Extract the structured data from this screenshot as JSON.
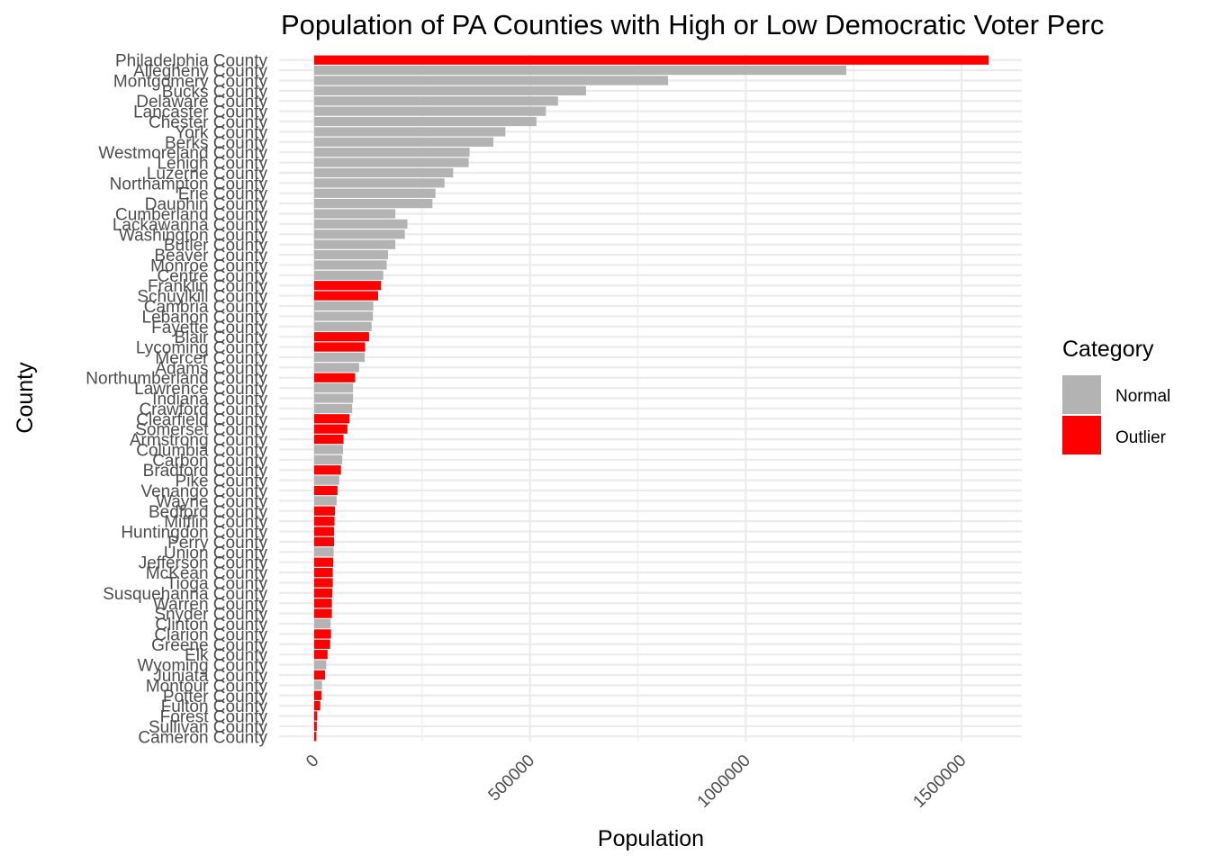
{
  "chart_data": {
    "type": "bar",
    "orientation": "horizontal",
    "title": "Population of PA Counties with High or Low Democratic Voter Perc",
    "xlabel": "Population",
    "ylabel": "County",
    "xlim": [
      0,
      1640000
    ],
    "xticks": [
      0,
      500000,
      1000000,
      1500000
    ],
    "xtick_labels": [
      "0",
      "500000",
      "1000000",
      "1500000"
    ],
    "grid": true,
    "legend": {
      "title": "Category",
      "position": "right",
      "entries": [
        {
          "label": "Normal",
          "color": "#b3b3b3"
        },
        {
          "label": "Outlier",
          "color": "#ff0000"
        }
      ]
    },
    "categories": [
      "Philadelphia County",
      "Allegheny County",
      "Montgomery County",
      "Bucks County",
      "Delaware County",
      "Lancaster County",
      "Chester County",
      "York County",
      "Berks County",
      "Westmoreland County",
      "Lehigh County",
      "Luzerne County",
      "Northampton County",
      "Erie County",
      "Dauphin County",
      "Cumberland County",
      "Lackawanna County",
      "Washington County",
      "Butler County",
      "Beaver County",
      "Monroe County",
      "Centre County",
      "Franklin County",
      "Schuylkill County",
      "Cambria County",
      "Lebanon County",
      "Fayette County",
      "Blair County",
      "Lycoming County",
      "Mercer County",
      "Adams County",
      "Northumberland County",
      "Lawrence County",
      "Indiana County",
      "Crawford County",
      "Clearfield County",
      "Somerset County",
      "Armstrong County",
      "Columbia County",
      "Carbon County",
      "Bradford County",
      "Pike County",
      "Venango County",
      "Wayne County",
      "Bedford County",
      "Mifflin County",
      "Huntingdon County",
      "Perry County",
      "Union County",
      "Jefferson County",
      "McKean County",
      "Tioga County",
      "Susquehanna County",
      "Warren County",
      "Snyder County",
      "Clinton County",
      "Clarion County",
      "Greene County",
      "Elk County",
      "Wyoming County",
      "Juniata County",
      "Montour County",
      "Potter County",
      "Fulton County",
      "Forest County",
      "Sullivan County",
      "Cameron County"
    ],
    "values": [
      1563000,
      1233000,
      820000,
      630000,
      565000,
      537000,
      515000,
      443000,
      415000,
      360000,
      358000,
      322000,
      302000,
      281000,
      274000,
      188000,
      216000,
      210000,
      188000,
      171000,
      168000,
      160000,
      155000,
      148000,
      137000,
      136000,
      133000,
      127000,
      118000,
      117000,
      104000,
      95000,
      90000,
      90000,
      88000,
      82000,
      77000,
      68000,
      67000,
      65000,
      62000,
      58000,
      54000,
      52000,
      48000,
      47000,
      46000,
      46000,
      45000,
      44000,
      43000,
      43000,
      42000,
      41000,
      41000,
      38000,
      39000,
      37000,
      31000,
      28000,
      25000,
      18000,
      17000,
      14000,
      7000,
      6000,
      5000
    ],
    "category_labels": [
      "Outlier",
      "Normal",
      "Normal",
      "Normal",
      "Normal",
      "Normal",
      "Normal",
      "Normal",
      "Normal",
      "Normal",
      "Normal",
      "Normal",
      "Normal",
      "Normal",
      "Normal",
      "Normal",
      "Normal",
      "Normal",
      "Normal",
      "Normal",
      "Normal",
      "Normal",
      "Outlier",
      "Outlier",
      "Normal",
      "Normal",
      "Normal",
      "Outlier",
      "Outlier",
      "Normal",
      "Normal",
      "Outlier",
      "Normal",
      "Normal",
      "Normal",
      "Outlier",
      "Outlier",
      "Outlier",
      "Normal",
      "Normal",
      "Outlier",
      "Normal",
      "Outlier",
      "Normal",
      "Outlier",
      "Outlier",
      "Outlier",
      "Outlier",
      "Normal",
      "Outlier",
      "Outlier",
      "Outlier",
      "Outlier",
      "Outlier",
      "Outlier",
      "Normal",
      "Outlier",
      "Outlier",
      "Outlier",
      "Normal",
      "Outlier",
      "Normal",
      "Outlier",
      "Outlier",
      "Outlier",
      "Outlier",
      "Outlier"
    ]
  }
}
